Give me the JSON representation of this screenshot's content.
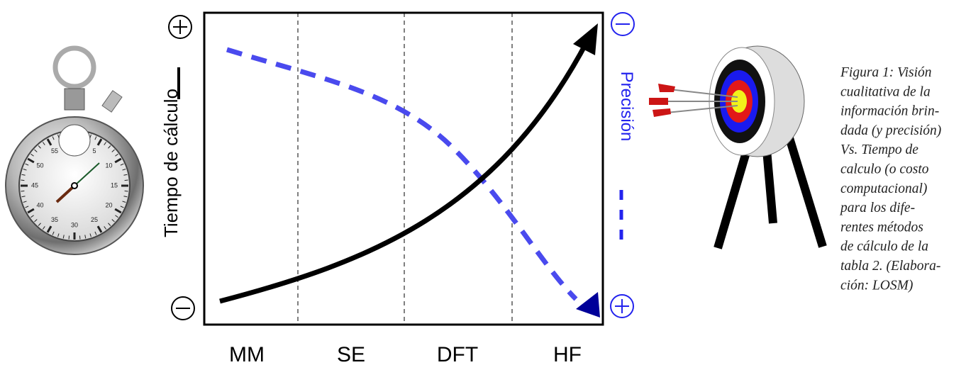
{
  "diagram": {
    "axes": {
      "left_label": "Tiempo de cálculo",
      "right_label": "Precisión"
    },
    "methods": [
      "MM",
      "SE",
      "DFT",
      "HF"
    ],
    "stopwatch_dial": [
      "5",
      "10",
      "15",
      "20",
      "25",
      "30",
      "35",
      "40",
      "45",
      "50",
      "55"
    ]
  },
  "caption": {
    "lines": [
      "Figura 1: Visión",
      "cualitativa de la",
      "información brin-",
      "dada (y precisión)",
      "Vs. Tiempo de",
      "calculo (o costo",
      "computacional)",
      "para los dife-",
      "rentes métodos",
      "de cálculo de la",
      "tabla 2. (Elabora-",
      "ción: LOSM)"
    ]
  }
}
